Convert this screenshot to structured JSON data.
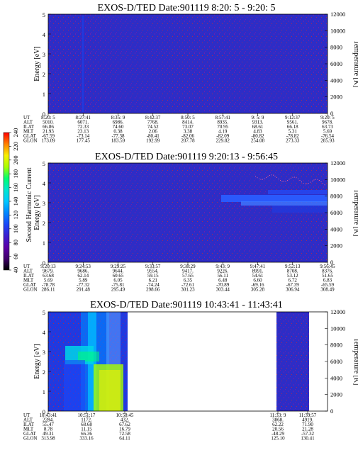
{
  "colors": {
    "background": "#2d2dc6",
    "speckle_purple": "#6b1fb0",
    "speckle_red": "#a42a58",
    "stripe": "#1f3ae0",
    "cyan": "#00d6e6",
    "green": "#3aff4a",
    "yellow": "#d8f21a"
  },
  "colorbar": {
    "label": "Second Harmonic Current",
    "ticks": [
      "40",
      "60",
      "80",
      "100",
      "120",
      "140",
      "160",
      "180",
      "200",
      "220",
      "240"
    ],
    "stops": [
      "#000000",
      "#40006a",
      "#5b00a8",
      "#3a1fd0",
      "#1a48f8",
      "#0088ff",
      "#00c8ff",
      "#00e6d0",
      "#00ff70",
      "#a8ff00",
      "#f8f000",
      "#ff8000",
      "#ff0000"
    ]
  },
  "chart_data": [
    {
      "type": "heatmap",
      "title": "EXOS-D/TED   Date:901119   8:20: 5 - 9:20: 5",
      "ylabel": "Energy [eV]",
      "ylabel_right": "Temperature [K]",
      "ylim": [
        0,
        5
      ],
      "yticks": [
        "0",
        "1",
        "2",
        "3",
        "4",
        "5"
      ],
      "ylim_right": [
        0,
        12000
      ],
      "yticks_right": [
        "0",
        "2000",
        "4000",
        "6000",
        "8000",
        "10000",
        "12000"
      ],
      "table_labels": [
        "UT",
        "ALT",
        "ILAT",
        "MLT",
        "GLAT",
        "GLON"
      ],
      "columns": [
        {
          "UT": "8:20: 5",
          "ALT": "5010.",
          "ILAT": "66.86",
          "MLT": "21.93",
          "GLAT": "-67.59",
          "GLON": "173.09"
        },
        {
          "UT": "8:27:41",
          "ALT": "6071.",
          "ILAT": "72.33",
          "MLT": "23.13",
          "GLAT": "-73.14",
          "GLON": "177.45"
        },
        {
          "UT": "8:35: 9",
          "ALT": "6986.",
          "ILAT": "74.60",
          "MLT": "0.38",
          "GLAT": "-77.38",
          "GLON": "183.59"
        },
        {
          "UT": "8:42:37",
          "ALT": "7768.",
          "ILAT": "74.52",
          "MLT": "2.06",
          "GLAT": "-80.41",
          "GLON": "192.99"
        },
        {
          "UT": "8:50: 5",
          "ALT": "8414.",
          "ILAT": "73.07",
          "MLT": "3.38",
          "GLAT": "-82.06",
          "GLON": "207.78"
        },
        {
          "UT": "8:57:41",
          "ALT": "8935.",
          "ILAT": "70.95",
          "MLT": "4.19",
          "GLAT": "-82.09",
          "GLON": "229.82"
        },
        {
          "UT": "9: 5: 9",
          "ALT": "9313.",
          "ILAT": "68.61",
          "MLT": "4.83",
          "GLAT": "-80.82",
          "GLON": "254.08"
        },
        {
          "UT": "9:12:37",
          "ALT": "9561.",
          "ILAT": "66.18",
          "MLT": "5.31",
          "GLAT": "-78.82",
          "GLON": "273.33"
        },
        {
          "UT": "9:20: 5",
          "ALT": "9678.",
          "ILAT": "63.73",
          "MLT": "5.69",
          "GLAT": "-76.54",
          "GLON": "285.93"
        }
      ]
    },
    {
      "type": "heatmap",
      "title": "EXOS-D/TED   Date:901119   9:20:13 - 9:56:45",
      "ylabel": "Energy [eV]",
      "ylabel_right": "Temperature [K]",
      "ylim": [
        0,
        5
      ],
      "yticks": [
        "0",
        "1",
        "2",
        "3",
        "4",
        "5"
      ],
      "ylim_right": [
        0,
        12000
      ],
      "yticks_right": [
        "0",
        "2000",
        "4000",
        "6000",
        "8000",
        "10000",
        "12000"
      ],
      "table_labels": [
        "UT",
        "ALT",
        "ILAT",
        "MLT",
        "GLAT",
        "GLON"
      ],
      "columns": [
        {
          "UT": "9:20:13",
          "ALT": "9679.",
          "ILAT": "63.68",
          "MLT": "5.69",
          "GLAT": "-78.78",
          "GLON": "286.11"
        },
        {
          "UT": "9:24:53",
          "ALT": "9686.",
          "ILAT": "62.14",
          "MLT": "5.89",
          "GLAT": "-77.32",
          "GLON": "291.48"
        },
        {
          "UT": "9:29:25",
          "ALT": "9644.",
          "ILAT": "60.65",
          "MLT": "6.05",
          "GLAT": "-75.81",
          "GLON": "295.49"
        },
        {
          "UT": "9:33:57",
          "ALT": "9554.",
          "ILAT": "59.15",
          "MLT": "6.21",
          "GLAT": "-74.24",
          "GLON": "298.66"
        },
        {
          "UT": "9:38:29",
          "ALT": "9417.",
          "ILAT": "57.65",
          "MLT": "6.35",
          "GLAT": "-72.61",
          "GLON": "301.23"
        },
        {
          "UT": "9:43: 9",
          "ALT": "9226.",
          "ILAT": "56.11",
          "MLT": "6.48",
          "GLAT": "-70.89",
          "GLON": "303.44"
        },
        {
          "UT": "9:47:41",
          "ALT": "8991.",
          "ILAT": "54.61",
          "MLT": "6.60",
          "GLAT": "-69.16",
          "GLON": "305.28"
        },
        {
          "UT": "9:52:13",
          "ALT": "8708.",
          "ILAT": "53.12",
          "MLT": "6.72",
          "GLAT": "-67.39",
          "GLON": "306.94"
        },
        {
          "UT": "9:56:45",
          "ALT": "8376.",
          "ILAT": "51.65",
          "MLT": "6.83",
          "GLAT": "-65.59",
          "GLON": "308.49"
        }
      ]
    },
    {
      "type": "heatmap",
      "title": "EXOS-D/TED   Date:901119   10:43:41 - 11:43:41",
      "ylabel": "Energy [eV]",
      "ylabel_right": "Temperature [K]",
      "ylim": [
        0,
        5
      ],
      "yticks": [
        "0",
        "1",
        "2",
        "3",
        "4",
        "5"
      ],
      "ylim_right": [
        0,
        12000
      ],
      "yticks_right": [
        "0",
        "2000",
        "4000",
        "6000",
        "8000",
        "10000",
        "12000"
      ],
      "table_labels": [
        "UT",
        "ALT",
        "ILAT",
        "MLT",
        "GLAT",
        "GLON"
      ],
      "columns": [
        {
          "UT": "10:43:41",
          "ALT": "2284.",
          "ILAT": "55.47",
          "MLT": "8.78",
          "GLAT": "49.31",
          "GLON": "313.98"
        },
        {
          "UT": "10:51:17",
          "ALT": "1172.",
          "ILAT": "68.68",
          "MLT": "11.15",
          "GLAT": "66.36",
          "GLON": "333.16"
        },
        {
          "UT": "10:58:45",
          "ALT": "432.",
          "ILAT": "67.62",
          "MLT": "16.79",
          "GLAT": "72.58",
          "GLON": "64.11"
        },
        {
          "UT": "11:33: 9",
          "ALT": "3868.",
          "ILAT": "62.22",
          "MLT": "20.56",
          "GLAT": "-48.29",
          "GLON": "125.10"
        },
        {
          "UT": "11:39:57",
          "ALT": "4919.",
          "ILAT": "71.90",
          "MLT": "21.28",
          "GLAT": "-57.32",
          "GLON": "130.41"
        }
      ]
    }
  ]
}
